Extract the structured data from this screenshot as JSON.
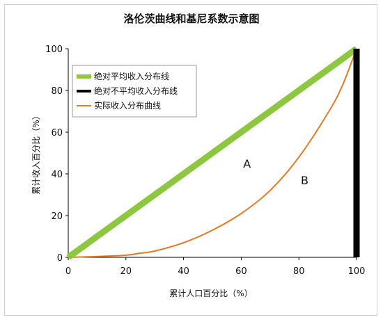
{
  "chart_data": {
    "type": "line",
    "title": "洛伦茨曲线和基尼系数示意图",
    "xlabel": "累计人口百分比（%）",
    "ylabel": "累计收入百分比（%）",
    "xlim": [
      0,
      100
    ],
    "ylim": [
      0,
      100
    ],
    "x_ticks": [
      "0",
      "20",
      "40",
      "60",
      "80",
      "100"
    ],
    "y_ticks": [
      "0",
      "20",
      "40",
      "60",
      "80",
      "100"
    ],
    "grid": false,
    "legend_position": "top-left",
    "series": [
      {
        "name": "绝对平均收入分布线",
        "color": "#8dc63f",
        "x": [
          0,
          100
        ],
        "y": [
          0,
          100
        ]
      },
      {
        "name": "绝对不平均收入分布线",
        "color": "#000000",
        "x": [
          0,
          100,
          100
        ],
        "y": [
          0,
          0,
          100
        ]
      },
      {
        "name": "实际收入分布曲线",
        "color": "#e07b2a",
        "x": [
          0,
          10,
          20,
          25,
          30,
          40,
          50,
          60,
          70,
          80,
          90,
          95,
          100
        ],
        "y": [
          0,
          0.4,
          1,
          2,
          3,
          7,
          13,
          21,
          32,
          48,
          69,
          82,
          100
        ]
      }
    ],
    "annotations": [
      {
        "text": "A",
        "x": 62,
        "y": 43
      },
      {
        "text": "B",
        "x": 82,
        "y": 35
      }
    ]
  }
}
